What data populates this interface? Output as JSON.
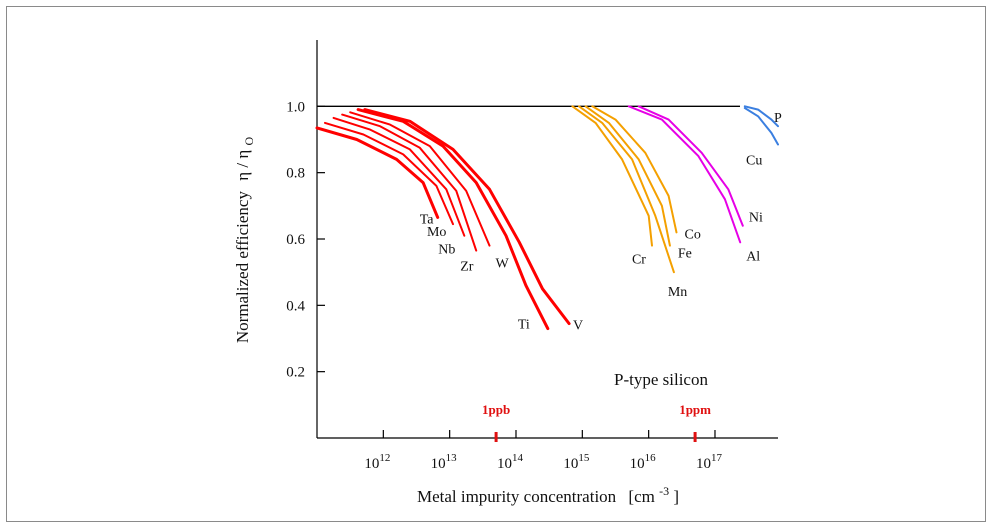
{
  "chart_data": {
    "type": "line",
    "title": "",
    "annotation": "P-type silicon",
    "xlabel": "Metal impurity concentration",
    "xlabel_unit_base": "[cm",
    "xlabel_unit_exp": "-3",
    "xlabel_unit_close": "]",
    "ylabel": "Normalized efficiency",
    "ylabel_symbol": "η / η",
    "ylabel_sub": "O",
    "xscale": "log",
    "xlim": [
      11,
      17.95
    ],
    "ylim": [
      0.0,
      1.2
    ],
    "grid": false,
    "x_ticks": [
      {
        "base": "10",
        "exp": "12",
        "value": 12
      },
      {
        "base": "10",
        "exp": "13",
        "value": 13
      },
      {
        "base": "10",
        "exp": "14",
        "value": 14
      },
      {
        "base": "10",
        "exp": "15",
        "value": 15
      },
      {
        "base": "10",
        "exp": "16",
        "value": 16
      },
      {
        "base": "10",
        "exp": "17",
        "value": 17
      }
    ],
    "y_ticks": [
      "0.2",
      "0.4",
      "0.6",
      "0.8",
      "1.0"
    ],
    "y_tick_values": [
      0.2,
      0.4,
      0.6,
      0.8,
      1.0
    ],
    "reference_line": 1.0,
    "reference_marks": [
      {
        "label": "1ppb",
        "x": 13.7
      },
      {
        "label": "1ppm",
        "x": 16.7
      }
    ],
    "colors": {
      "red": "#ff0000",
      "orange": "#f4a000",
      "magenta": "#e600e6",
      "blue": "#3b7fe0",
      "ref": "#e01010",
      "axis": "#000000"
    },
    "series": [
      {
        "name": "Ta",
        "color": "#ff0000",
        "points": [
          [
            11.0,
            0.935
          ],
          [
            11.6,
            0.9
          ],
          [
            12.2,
            0.84
          ],
          [
            12.6,
            0.77
          ],
          [
            12.82,
            0.665
          ]
        ]
      },
      {
        "name": "Mo",
        "color": "#ff0000",
        "points": [
          [
            11.12,
            0.95
          ],
          [
            11.7,
            0.915
          ],
          [
            12.3,
            0.855
          ],
          [
            12.8,
            0.76
          ],
          [
            13.05,
            0.645
          ]
        ]
      },
      {
        "name": "Nb",
        "color": "#ff0000",
        "points": [
          [
            11.25,
            0.965
          ],
          [
            11.8,
            0.93
          ],
          [
            12.4,
            0.87
          ],
          [
            12.95,
            0.75
          ],
          [
            13.22,
            0.61
          ]
        ]
      },
      {
        "name": "Zr",
        "color": "#ff0000",
        "points": [
          [
            11.38,
            0.975
          ],
          [
            11.95,
            0.94
          ],
          [
            12.55,
            0.875
          ],
          [
            13.1,
            0.745
          ],
          [
            13.4,
            0.565
          ]
        ]
      },
      {
        "name": "W",
        "color": "#ff0000",
        "points": [
          [
            11.5,
            0.982
          ],
          [
            12.1,
            0.945
          ],
          [
            12.7,
            0.88
          ],
          [
            13.25,
            0.745
          ],
          [
            13.6,
            0.58
          ]
        ]
      },
      {
        "name": "Ti",
        "color": "#ff0000",
        "points": [
          [
            11.62,
            0.99
          ],
          [
            12.3,
            0.955
          ],
          [
            12.9,
            0.88
          ],
          [
            13.4,
            0.77
          ],
          [
            13.85,
            0.61
          ],
          [
            14.15,
            0.46
          ],
          [
            14.48,
            0.33
          ]
        ]
      },
      {
        "name": "V",
        "color": "#ff0000",
        "points": [
          [
            11.72,
            0.99
          ],
          [
            12.4,
            0.955
          ],
          [
            13.05,
            0.87
          ],
          [
            13.6,
            0.75
          ],
          [
            14.05,
            0.59
          ],
          [
            14.4,
            0.45
          ],
          [
            14.8,
            0.345
          ]
        ]
      },
      {
        "name": "Cr",
        "color": "#f4a000",
        "points": [
          [
            14.85,
            1.0
          ],
          [
            15.2,
            0.95
          ],
          [
            15.6,
            0.84
          ],
          [
            16.0,
            0.67
          ],
          [
            16.05,
            0.58
          ]
        ]
      },
      {
        "name": "Mn",
        "color": "#f4a000",
        "points": [
          [
            14.95,
            1.0
          ],
          [
            15.3,
            0.95
          ],
          [
            15.75,
            0.84
          ],
          [
            16.1,
            0.67
          ],
          [
            16.38,
            0.5
          ]
        ]
      },
      {
        "name": "Fe",
        "color": "#f4a000",
        "points": [
          [
            15.05,
            1.0
          ],
          [
            15.4,
            0.95
          ],
          [
            15.85,
            0.84
          ],
          [
            16.2,
            0.7
          ],
          [
            16.32,
            0.58
          ]
        ]
      },
      {
        "name": "Co",
        "color": "#f4a000",
        "points": [
          [
            15.15,
            1.0
          ],
          [
            15.5,
            0.96
          ],
          [
            15.95,
            0.86
          ],
          [
            16.3,
            0.73
          ],
          [
            16.42,
            0.62
          ]
        ]
      },
      {
        "name": "Ni",
        "color": "#e600e6",
        "points": [
          [
            15.85,
            1.0
          ],
          [
            16.3,
            0.96
          ],
          [
            16.8,
            0.86
          ],
          [
            17.2,
            0.75
          ],
          [
            17.42,
            0.64
          ]
        ]
      },
      {
        "name": "Al",
        "color": "#e600e6",
        "points": [
          [
            15.7,
            1.0
          ],
          [
            16.2,
            0.96
          ],
          [
            16.75,
            0.85
          ],
          [
            17.15,
            0.72
          ],
          [
            17.38,
            0.59
          ]
        ]
      },
      {
        "name": "P",
        "color": "#3b7fe0",
        "points": [
          [
            17.45,
            1.0
          ],
          [
            17.65,
            0.99
          ],
          [
            17.85,
            0.96
          ],
          [
            17.95,
            0.94
          ]
        ]
      },
      {
        "name": "Cu",
        "color": "#3b7fe0",
        "points": [
          [
            17.45,
            0.995
          ],
          [
            17.65,
            0.97
          ],
          [
            17.85,
            0.92
          ],
          [
            17.95,
            0.885
          ]
        ]
      }
    ]
  }
}
